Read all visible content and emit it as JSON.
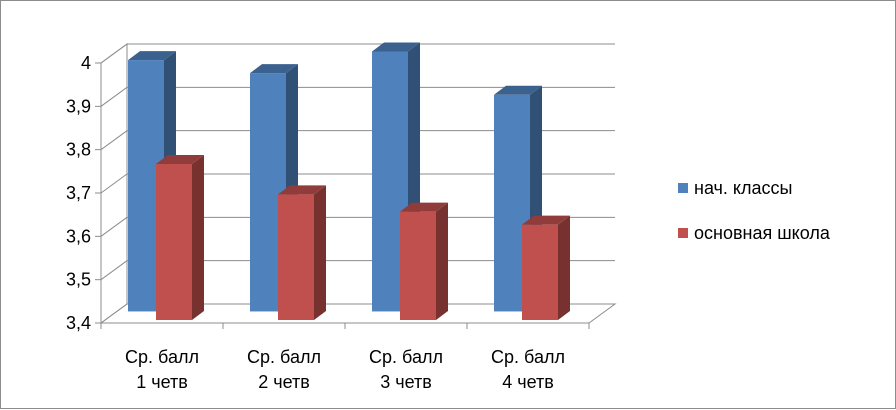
{
  "chart_data": {
    "type": "bar",
    "categories": [
      [
        "Ср. балл",
        "1 четв"
      ],
      [
        "Ср. балл",
        "2  четв"
      ],
      [
        "Ср. балл",
        "3 четв"
      ],
      [
        "Ср. балл",
        "4 четв"
      ]
    ],
    "series": [
      {
        "name": "нач. классы",
        "values": [
          3.98,
          3.95,
          4.0,
          3.9
        ],
        "color": "#4F81BD"
      },
      {
        "name": "основная школа",
        "values": [
          3.76,
          3.69,
          3.65,
          3.62
        ],
        "color": "#C0504D"
      }
    ],
    "yticks": [
      "3,4",
      "3,5",
      "3,6",
      "3,7",
      "3,8",
      "3,9",
      "4"
    ],
    "ylim": [
      3.4,
      4.0
    ],
    "grid": true,
    "legend_position": "right",
    "three_d": true
  }
}
